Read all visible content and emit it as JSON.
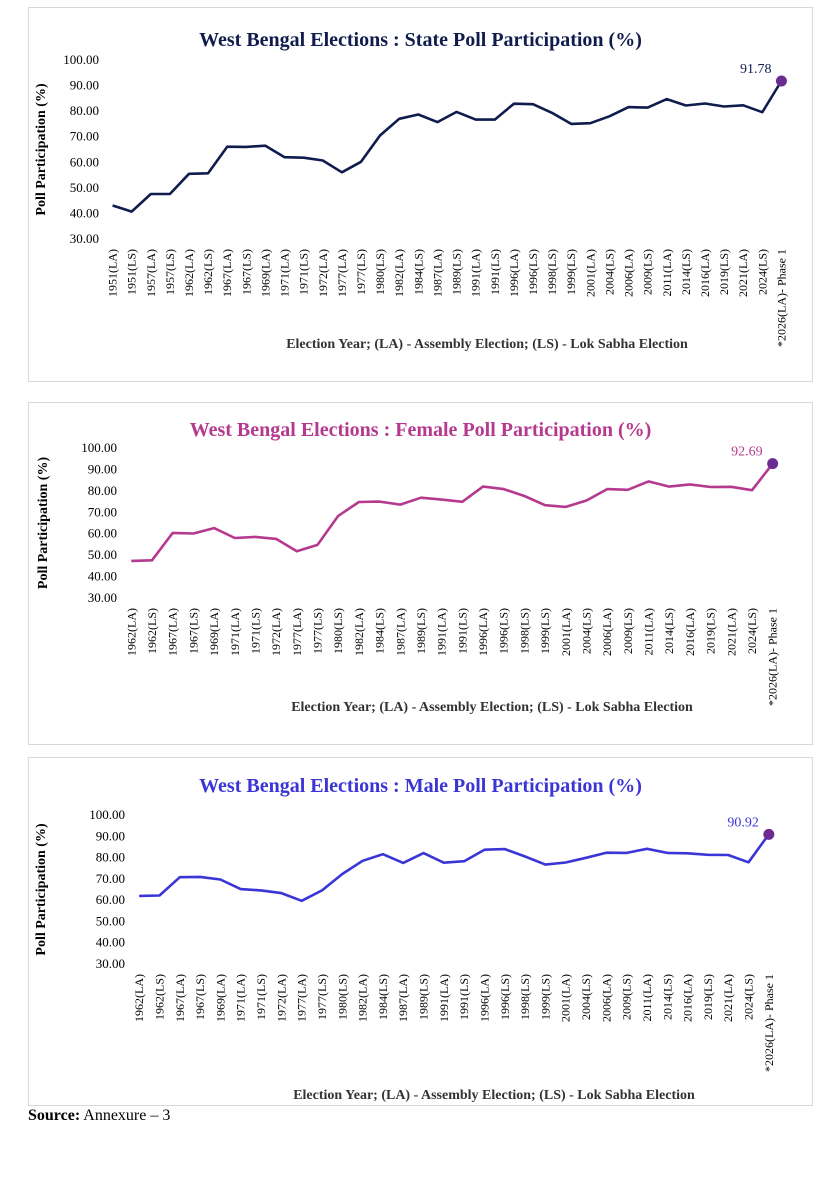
{
  "chart_data": [
    {
      "type": "line",
      "title": "West Bengal Elections : State Poll Participation (%)",
      "xlabel": "Election Year; (LA) - Assembly Election; (LS) - Lok Sabha Election",
      "ylabel": "Poll Participation (%)",
      "ylim": [
        30,
        100
      ],
      "yticks": [
        "30.00",
        "40.00",
        "50.00",
        "60.00",
        "70.00",
        "80.00",
        "90.00",
        "100.00"
      ],
      "categories": [
        "1951(LA)",
        "1951(LS)",
        "1957(LA)",
        "1957(LS)",
        "1962(LA)",
        "1962(LS)",
        "1967(LA)",
        "1967(LS)",
        "1969(LA)",
        "1971(LA)",
        "1971(LS)",
        "1972(LA)",
        "1977(LA)",
        "1977(LS)",
        "1980(LS)",
        "1982(LA)",
        "1984(LS)",
        "1987(LA)",
        "1989(LS)",
        "1991(LA)",
        "1991(LS)",
        "1996(LA)",
        "1996(LS)",
        "1998(LS)",
        "1999(LS)",
        "2001(LA)",
        "2004(LS)",
        "2006(LA)",
        "2009(LS)",
        "2011(LA)",
        "2014(LS)",
        "2016(LA)",
        "2019(LS)",
        "2021(LA)",
        "2024(LS)",
        "*2026(LA)- Phase 1"
      ],
      "series": [
        {
          "values": [
            43.1,
            40.7,
            47.6,
            47.6,
            55.5,
            55.7,
            66.1,
            66.0,
            66.5,
            62.0,
            61.8,
            60.7,
            56.1,
            60.2,
            70.5,
            77.0,
            78.7,
            75.7,
            79.7,
            76.7,
            76.7,
            82.9,
            82.7,
            79.3,
            75.0,
            75.3,
            78.0,
            81.6,
            81.4,
            84.7,
            82.2,
            83.0,
            81.8,
            82.3,
            79.6,
            91.78
          ]
        }
      ],
      "annotations": [
        "91.78"
      ],
      "colors": {
        "title": "#0f1c4d",
        "line": "#0f1c4d",
        "marker": "#6a2c91",
        "label": "#0f1c4d"
      },
      "grid": false
    },
    {
      "type": "line",
      "title": "West Bengal Elections : Female Poll Participation (%)",
      "xlabel": "Election Year; (LA) - Assembly Election; (LS) - Lok Sabha Election",
      "ylabel": "Poll Participation (%)",
      "ylim": [
        30,
        100
      ],
      "yticks": [
        "30.00",
        "40.00",
        "50.00",
        "60.00",
        "70.00",
        "80.00",
        "90.00",
        "100.00"
      ],
      "categories": [
        "1962(LA)",
        "1962(LS)",
        "1967(LA)",
        "1967(LS)",
        "1969(LA)",
        "1971(LA)",
        "1971(LS)",
        "1972(LA)",
        "1977(LA)",
        "1977(LS)",
        "1980(LS)",
        "1982(LA)",
        "1984(LS)",
        "1987(LA)",
        "1989(LS)",
        "1991(LA)",
        "1991(LS)",
        "1996(LA)",
        "1996(LS)",
        "1998(LS)",
        "1999(LS)",
        "2001(LA)",
        "2004(LS)",
        "2006(LA)",
        "2009(LS)",
        "2011(LA)",
        "2014(LS)",
        "2016(LA)",
        "2019(LS)",
        "2021(LA)",
        "2024(LS)",
        "*2026(LA)- Phase 1"
      ],
      "series": [
        {
          "values": [
            47.3,
            47.6,
            60.4,
            60.1,
            62.6,
            58.0,
            58.5,
            57.6,
            51.8,
            54.8,
            68.3,
            74.8,
            75.0,
            73.6,
            76.8,
            75.9,
            74.9,
            82.0,
            80.8,
            77.6,
            73.3,
            72.5,
            75.5,
            80.8,
            80.5,
            84.4,
            82.0,
            83.0,
            81.8,
            81.9,
            80.3,
            92.69
          ]
        }
      ],
      "annotations": [
        "92.69"
      ],
      "colors": {
        "title": "#b5398f",
        "line": "#b5398f",
        "marker": "#6a2c91",
        "label": "#b5398f"
      },
      "grid": false
    },
    {
      "type": "line",
      "title": "West Bengal Elections : Male Poll Participation (%)",
      "xlabel": "Election Year; (LA) - Assembly Election; (LS) - Lok Sabha Election",
      "ylabel": "Poll Participation (%)",
      "ylim": [
        30,
        100
      ],
      "yticks": [
        "30.00",
        "40.00",
        "50.00",
        "60.00",
        "70.00",
        "80.00",
        "90.00",
        "100.00"
      ],
      "categories": [
        "1962(LA)",
        "1962(LS)",
        "1967(LA)",
        "1967(LS)",
        "1969(LA)",
        "1971(LA)",
        "1971(LS)",
        "1972(LA)",
        "1977(LA)",
        "1977(LS)",
        "1980(LS)",
        "1982(LA)",
        "1984(LS)",
        "1987(LA)",
        "1989(LS)",
        "1991(LA)",
        "1991(LS)",
        "1996(LA)",
        "1996(LS)",
        "1998(LS)",
        "1999(LS)",
        "2001(LA)",
        "2004(LS)",
        "2006(LA)",
        "2009(LS)",
        "2011(LA)",
        "2014(LS)",
        "2016(LA)",
        "2019(LS)",
        "2021(LA)",
        "2024(LS)",
        "*2026(LA)- Phase 1"
      ],
      "series": [
        {
          "values": [
            62.0,
            62.2,
            70.8,
            70.9,
            69.7,
            65.2,
            64.6,
            63.3,
            59.7,
            64.6,
            72.3,
            78.5,
            81.6,
            77.5,
            82.1,
            77.6,
            78.3,
            83.7,
            84.0,
            80.5,
            76.7,
            77.7,
            79.9,
            82.3,
            82.2,
            84.1,
            82.2,
            82.0,
            81.3,
            81.2,
            77.8,
            90.92
          ]
        }
      ],
      "annotations": [
        "90.92"
      ],
      "colors": {
        "title": "#3a35d6",
        "line": "#3a35d6",
        "marker": "#6a2c91",
        "label": "#3a35d6"
      },
      "grid": false
    }
  ],
  "footer": {
    "source_label": "Source:",
    "source_text": "Annexure – 3"
  }
}
